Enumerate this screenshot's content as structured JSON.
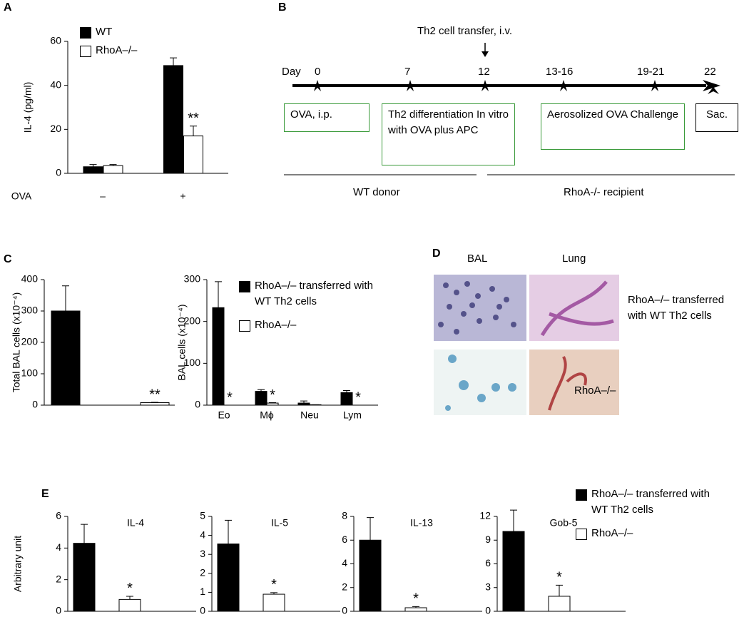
{
  "panel_labels": [
    "A",
    "B",
    "C",
    "D",
    "E"
  ],
  "chart_data": [
    {
      "type": "bar",
      "y_label": "IL-4 (pg/ml)",
      "x_label": "OVA",
      "categories": [
        "–",
        "+"
      ],
      "series": [
        {
          "name": "WT",
          "color": "#000000",
          "values": [
            3,
            49
          ],
          "errors": [
            1,
            3.5
          ]
        },
        {
          "name": "RhoA–/–",
          "color": "#ffffff",
          "values": [
            3.5,
            17
          ],
          "errors": [
            0.5,
            4.5
          ]
        }
      ],
      "ylim": [
        0,
        60
      ],
      "yticks": [
        0,
        20,
        40,
        60
      ],
      "annotations": [
        {
          "text": "**",
          "category": 1,
          "series": 1
        }
      ]
    },
    {
      "type": "bar",
      "y_label": "Total BAL cells (x10⁻⁴)",
      "categories": [
        null
      ],
      "series": [
        {
          "color": "#000000",
          "values": [
            300
          ],
          "errors": [
            80
          ]
        },
        {
          "color": "#ffffff",
          "values": [
            8
          ],
          "errors": [
            1
          ]
        }
      ],
      "ylim": [
        0,
        400
      ],
      "yticks": [
        0,
        100,
        200,
        300,
        400
      ],
      "annotations": [
        {
          "text": "**",
          "category": 0,
          "series": 1
        }
      ]
    },
    {
      "type": "bar",
      "y_label": "BAL cells (x10⁻⁴)",
      "categories": [
        "Eo",
        "Mϕ",
        "Neu",
        "Lym"
      ],
      "series": [
        {
          "name": "RhoA–/– transferred with WT Th2 cells",
          "color": "#000000",
          "values": [
            233,
            33,
            5,
            30
          ],
          "errors": [
            62,
            4,
            5,
            5
          ]
        },
        {
          "name": "RhoA–/–",
          "color": "#ffffff",
          "values": [
            0,
            5,
            1,
            0
          ],
          "errors": [
            0,
            1,
            0,
            0
          ]
        }
      ],
      "ylim": [
        0,
        300
      ],
      "yticks": [
        0,
        100,
        200,
        300
      ],
      "annotations": [
        {
          "text": "*",
          "category": 0,
          "series": 1
        },
        {
          "text": "*",
          "category": 1,
          "series": 1
        },
        {
          "text": "*",
          "category": 3,
          "series": 1
        }
      ]
    },
    {
      "type": "bar",
      "title": "IL-4",
      "y_label": "Arbitrary unit",
      "categories": [
        null
      ],
      "series": [
        {
          "name": "RhoA–/– transferred with WT Th2 cells",
          "color": "#000000",
          "values": [
            4.3
          ],
          "errors": [
            1.2
          ]
        },
        {
          "name": "RhoA–/–",
          "color": "#ffffff",
          "values": [
            0.75
          ],
          "errors": [
            0.2
          ]
        }
      ],
      "ylim": [
        0,
        6
      ],
      "yticks": [
        0,
        2,
        4,
        6
      ],
      "annotations": [
        {
          "text": "*",
          "category": 0,
          "series": 1
        }
      ]
    },
    {
      "type": "bar",
      "title": "IL-5",
      "categories": [
        null
      ],
      "series": [
        {
          "color": "#000000",
          "values": [
            3.55
          ],
          "errors": [
            1.25
          ]
        },
        {
          "color": "#ffffff",
          "values": [
            0.9
          ],
          "errors": [
            0.08
          ]
        }
      ],
      "ylim": [
        0,
        5
      ],
      "yticks": [
        0,
        1,
        2,
        3,
        4,
        5
      ],
      "annotations": [
        {
          "text": "*",
          "category": 0,
          "series": 1
        }
      ]
    },
    {
      "type": "bar",
      "title": "IL-13",
      "categories": [
        null
      ],
      "series": [
        {
          "color": "#000000",
          "values": [
            6.0
          ],
          "errors": [
            1.9
          ]
        },
        {
          "color": "#ffffff",
          "values": [
            0.3
          ],
          "errors": [
            0.1
          ]
        }
      ],
      "ylim": [
        0,
        8
      ],
      "yticks": [
        0,
        2,
        4,
        6,
        8
      ],
      "annotations": [
        {
          "text": "*",
          "category": 0,
          "series": 1
        }
      ]
    },
    {
      "type": "bar",
      "title": "Gob-5",
      "categories": [
        null
      ],
      "series": [
        {
          "color": "#000000",
          "values": [
            10.1
          ],
          "errors": [
            2.7
          ]
        },
        {
          "color": "#ffffff",
          "values": [
            1.9
          ],
          "errors": [
            1.4
          ]
        }
      ],
      "ylim": [
        0,
        12
      ],
      "yticks": [
        0,
        3,
        6,
        9,
        12
      ],
      "annotations": [
        {
          "text": "*",
          "category": 0,
          "series": 1
        }
      ]
    }
  ],
  "timeline": {
    "transfer_label": "Th2 cell transfer, i.v.",
    "day_label": "Day",
    "days": [
      "0",
      "7",
      "12",
      "13-16",
      "19-21",
      "22"
    ],
    "steps": [
      "OVA, i.p.",
      "Th2 differentiation In vitro with OVA plus APC",
      "Aerosolized OVA Challenge",
      "Sac."
    ],
    "phases": [
      "WT donor",
      "RhoA-/- recipient"
    ]
  },
  "micrographs": {
    "columns": [
      "BAL",
      "Lung"
    ],
    "rows": [
      "RhoA–/– transferred with WT Th2 cells",
      "RhoA–/–"
    ]
  }
}
